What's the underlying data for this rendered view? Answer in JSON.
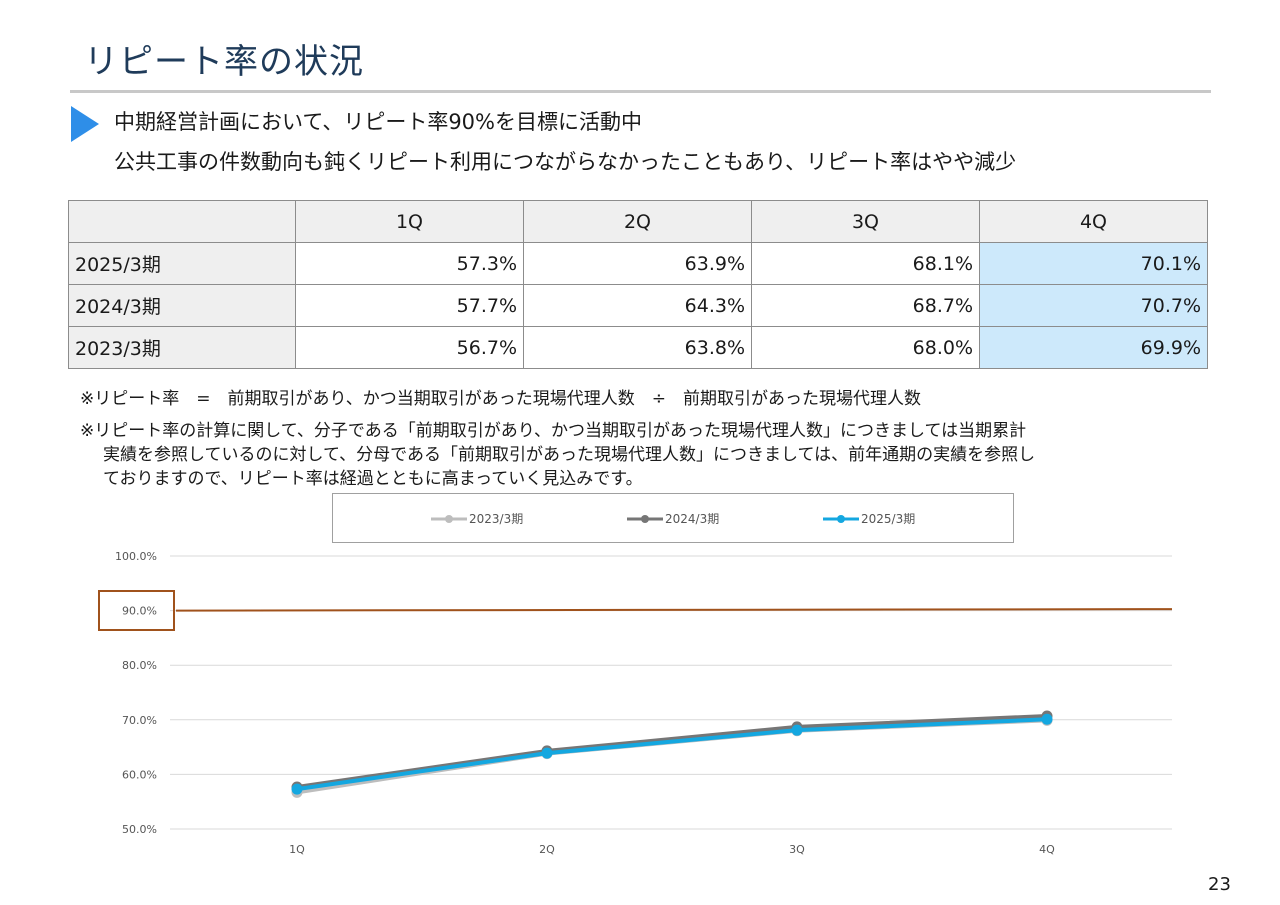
{
  "slide": {
    "title": "リピート率の状況",
    "lead_line1": "中期経営計画において、リピート率90%を目標に活動中",
    "lead_line2": "公共工事の件数動向も鈍くリピート利用につながらなかったこともあり、リピート率はやや減少",
    "page_number": "23"
  },
  "table": {
    "headers": [
      "",
      "1Q",
      "2Q",
      "3Q",
      "4Q"
    ],
    "rows": [
      {
        "label": "2025/3期",
        "values": [
          "57.3%",
          "63.9%",
          "68.1%",
          "70.1%"
        ]
      },
      {
        "label": "2024/3期",
        "values": [
          "57.7%",
          "64.3%",
          "68.7%",
          "70.7%"
        ]
      },
      {
        "label": "2023/3期",
        "values": [
          "56.7%",
          "63.8%",
          "68.0%",
          "69.9%"
        ]
      }
    ]
  },
  "notes": {
    "formula": "※リピート率　=　前期取引があり、かつ当期取引があった現場代理人数　÷　前期取引があった現場代理人数",
    "explanation_line1": "※リピート率の計算に関して、分子である「前期取引があり、かつ当期取引があった現場代理人数」につきましては当期累計",
    "explanation_line2": "実績を参照しているのに対して、分母である「前期取引があった現場代理人数」につきましては、前年通期の実績を参照し",
    "explanation_line3": "ておりますので、リピート率は経過とともに高まっていく見込みです。"
  },
  "chart_data": {
    "type": "line",
    "categories": [
      "1Q",
      "2Q",
      "3Q",
      "4Q"
    ],
    "series": [
      {
        "name": "2023/3期",
        "values": [
          56.7,
          63.8,
          68.0,
          69.9
        ],
        "color": "#bdbdbd"
      },
      {
        "name": "2024/3期",
        "values": [
          57.7,
          64.3,
          68.7,
          70.7
        ],
        "color": "#767676"
      },
      {
        "name": "2025/3期",
        "values": [
          57.3,
          63.9,
          68.1,
          70.1
        ],
        "color": "#14a7e0"
      }
    ],
    "target": {
      "value": 90.0,
      "label": "90.0%",
      "color": "#a0521c"
    },
    "ylim": [
      50,
      100
    ],
    "yticks": [
      "50.0%",
      "60.0%",
      "70.0%",
      "80.0%",
      "90.0%",
      "100.0%"
    ],
    "grid": true,
    "legend": "top"
  }
}
